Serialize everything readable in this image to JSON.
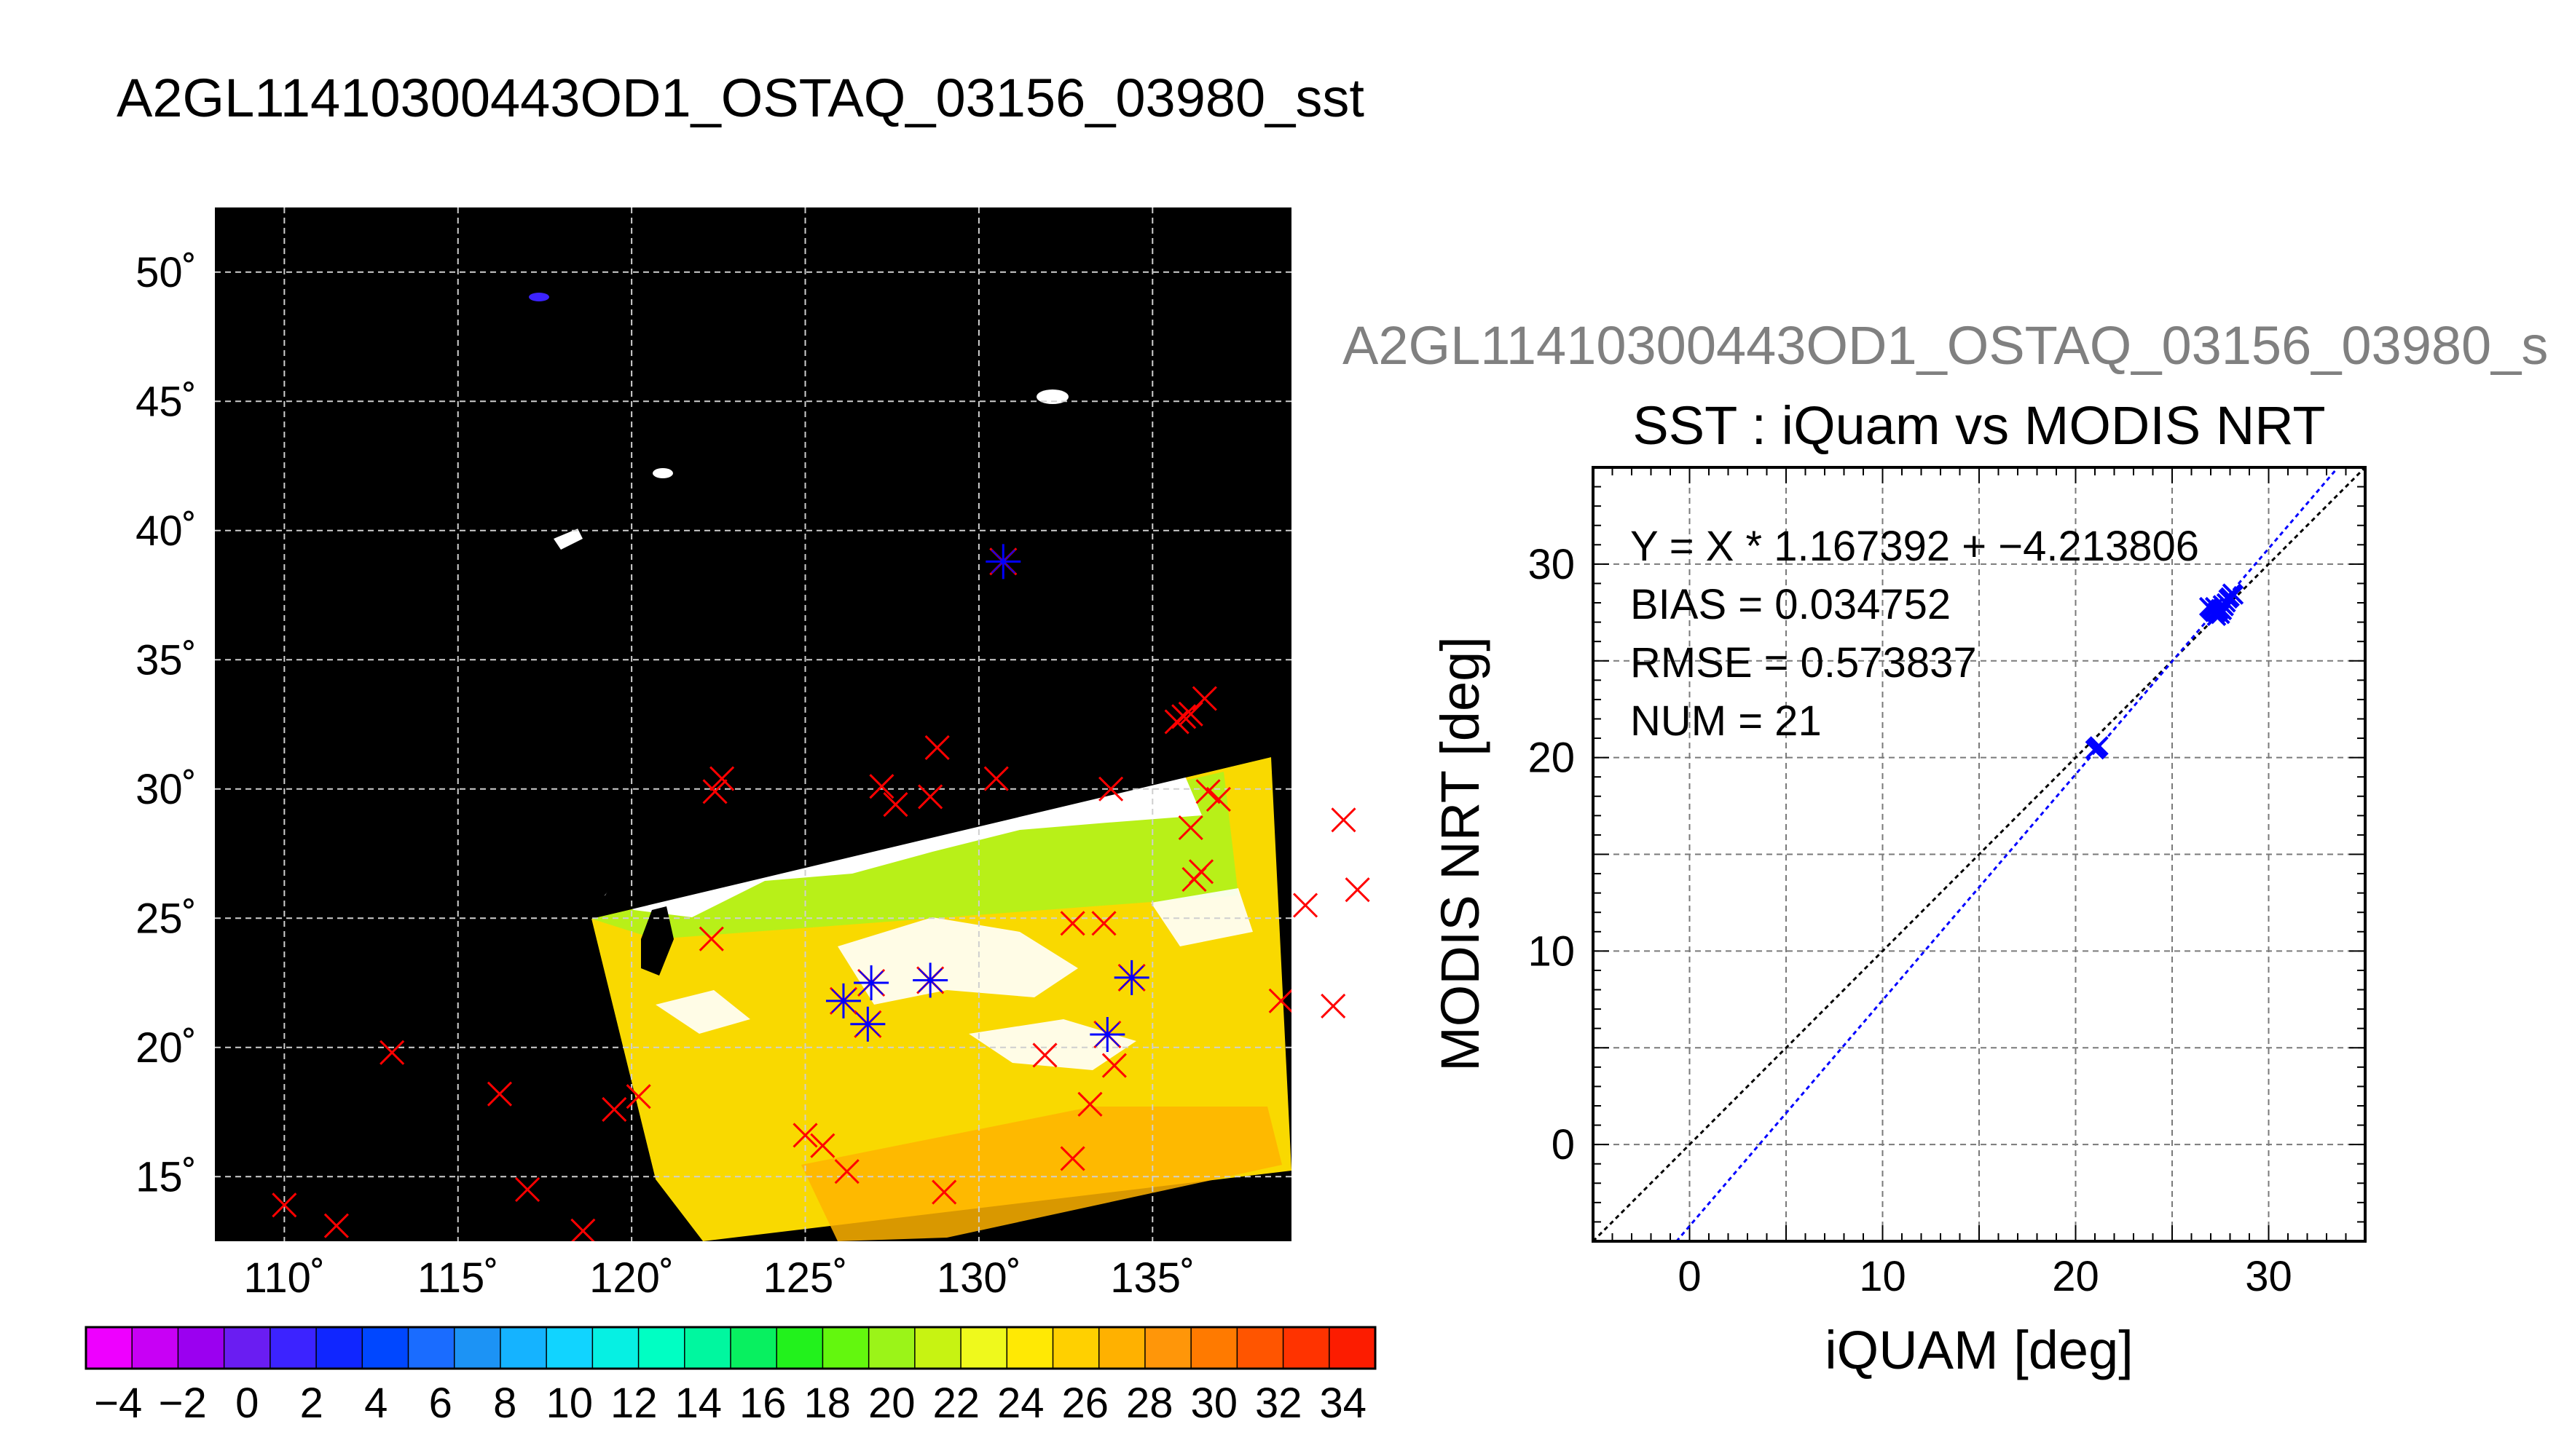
{
  "page_title": "A2GL11410300443OD1_OSTAQ_03156_03980_sst",
  "chart_data": [
    {
      "type": "map",
      "title": "A2GL11410300443OD1_OSTAQ_03156_03980_sst",
      "lon_range": [
        108,
        139
      ],
      "lat_range": [
        12.5,
        52.5
      ],
      "lon_ticks": [
        110,
        115,
        120,
        125,
        130,
        135
      ],
      "lat_ticks": [
        15,
        20,
        25,
        30,
        35,
        40,
        45,
        50
      ],
      "lon_tick_labels": [
        "110˚",
        "115˚",
        "120˚",
        "125˚",
        "130˚",
        "135˚"
      ],
      "lat_tick_labels": [
        "15˚",
        "20˚",
        "25˚",
        "30˚",
        "35˚",
        "40˚",
        "45˚",
        "50˚"
      ],
      "grid": true,
      "background": "#000000",
      "land_color": "#000000",
      "cloud_color": "#ffffff",
      "red_x_markers": [
        [
          110,
          13.9
        ],
        [
          111.5,
          13.1
        ],
        [
          113.1,
          19.8
        ],
        [
          116.2,
          18.2
        ],
        [
          117,
          14.5
        ],
        [
          118.6,
          12.9
        ],
        [
          119.5,
          17.6
        ],
        [
          120.2,
          18.1
        ],
        [
          122.4,
          29.9
        ],
        [
          122.6,
          30.4
        ],
        [
          122.3,
          24.2
        ],
        [
          125,
          16.6
        ],
        [
          125.5,
          16.2
        ],
        [
          126.2,
          15.2
        ],
        [
          127.2,
          30.1
        ],
        [
          127.6,
          29.4
        ],
        [
          128.6,
          29.7
        ],
        [
          128.8,
          31.6
        ],
        [
          130.5,
          30.4
        ],
        [
          129,
          14.4
        ],
        [
          131.9,
          19.7
        ],
        [
          132.7,
          24.8
        ],
        [
          132.7,
          15.7
        ],
        [
          133.2,
          17.8
        ],
        [
          133.6,
          24.8
        ],
        [
          133.9,
          19.3
        ],
        [
          133.8,
          30.0
        ],
        [
          135.7,
          32.6
        ],
        [
          135.9,
          32.8
        ],
        [
          136.1,
          32.9
        ],
        [
          136.5,
          33.5
        ],
        [
          136.1,
          28.5
        ],
        [
          136.2,
          26.5
        ],
        [
          136.6,
          29.9
        ],
        [
          136.9,
          29.6
        ],
        [
          136.4,
          26.8
        ],
        [
          138.7,
          21.8
        ],
        [
          139.4,
          25.5
        ],
        [
          140.2,
          21.6
        ],
        [
          140.5,
          28.8
        ],
        [
          140.9,
          26.1
        ]
      ],
      "match_markers": [
        [
          130.7,
          38.8
        ],
        [
          126.1,
          21.8
        ],
        [
          126.9,
          22.5
        ],
        [
          128.6,
          22.6
        ],
        [
          126.8,
          20.9
        ],
        [
          133.7,
          20.5
        ],
        [
          134.4,
          22.7
        ]
      ],
      "colorbar": {
        "min": -5,
        "max": 35,
        "tick_values": [
          -4,
          -2,
          0,
          2,
          4,
          6,
          8,
          10,
          12,
          14,
          16,
          18,
          20,
          22,
          24,
          26,
          28,
          30,
          32,
          34
        ],
        "tick_labels": [
          "−4",
          "−2",
          "0",
          "2",
          "4",
          "6",
          "8",
          "10",
          "12",
          "14",
          "16",
          "18",
          "20",
          "22",
          "24",
          "26",
          "28",
          "30",
          "32",
          "34"
        ],
        "colors": [
          "#ee00ff",
          "#c800f5",
          "#9b00f0",
          "#6a1df2",
          "#3c23ff",
          "#1026ff",
          "#0047ff",
          "#1a6cff",
          "#1c93f5",
          "#15b3ff",
          "#11d4ff",
          "#06f0e3",
          "#00ffc3",
          "#00f79f",
          "#08f060",
          "#22f21c",
          "#63f70e",
          "#9bf418",
          "#c7f312",
          "#eff91c",
          "#ffe904",
          "#ffd000",
          "#ffb100",
          "#ff9609",
          "#ff7a00",
          "#ff5500",
          "#ff3300",
          "#fc1c00"
        ]
      }
    },
    {
      "type": "scatter",
      "header": "A2GL11410300443OD1_OSTAQ_03156_03980_s",
      "title": "SST : iQuam vs MODIS NRT",
      "xlabel": "iQUAM [deg]",
      "ylabel": "MODIS NRT [deg]",
      "xlim": [
        -5,
        35
      ],
      "ylim": [
        -5,
        35
      ],
      "x_ticks": [
        0,
        10,
        20,
        30
      ],
      "y_ticks": [
        0,
        10,
        20,
        30
      ],
      "grid": true,
      "stats": [
        "Y = X * 1.167392 + −4.213806",
        "BIAS = 0.034752",
        "RMSE = 0.573837",
        "NUM = 21"
      ],
      "fit": {
        "slope": 1.167392,
        "intercept": -4.213806
      },
      "points_x": [
        21.1,
        21.2,
        27.0,
        27.1,
        27.2,
        27.2,
        27.3,
        27.3,
        27.4,
        27.5,
        27.5,
        27.6,
        27.6,
        27.7,
        27.8,
        27.9,
        28.0,
        28.1,
        28.2,
        26.9,
        21.0
      ],
      "points_y": [
        20.5,
        20.6,
        27.7,
        27.6,
        27.5,
        27.8,
        27.3,
        27.5,
        27.6,
        27.4,
        27.7,
        27.6,
        27.9,
        27.8,
        28.0,
        28.2,
        28.3,
        28.5,
        28.4,
        27.8,
        20.4
      ]
    }
  ],
  "colors": {
    "marker_red": "#ff0000",
    "marker_blue": "#0000ff",
    "fit_line": "#0000ff",
    "identity_line": "#000000",
    "header_gray": "#808080"
  }
}
